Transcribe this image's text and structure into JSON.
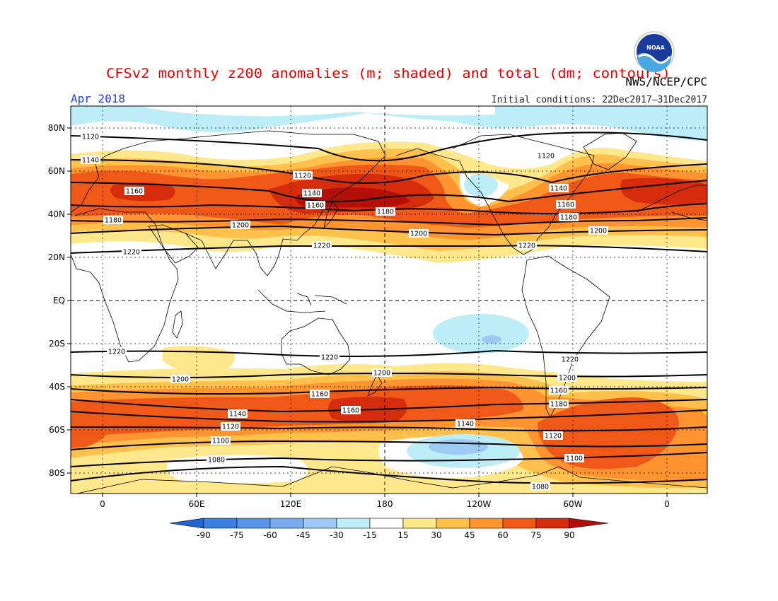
{
  "header": {
    "title": "CFSv2 monthly z200 anomalies (m; shaded) and total (dm; contours)",
    "period": "Apr 2018",
    "agency": "NWS/NCEP/CPC",
    "initial_conditions": "Initial conditions: 22Dec2017–31Dec2017",
    "logo_text": "NOAA"
  },
  "map": {
    "projection": "cylindrical equidistant",
    "lon_ticks": [
      "0",
      "60E",
      "120E",
      "180",
      "120W",
      "60W",
      "0"
    ],
    "lat_ticks": [
      "80N",
      "60N",
      "40N",
      "20N",
      "EQ",
      "20S",
      "40S",
      "60S",
      "80S"
    ],
    "contour_labels": [
      "1120",
      "1140",
      "1160",
      "1180",
      "1200",
      "1220",
      "1120",
      "1140",
      "1160",
      "1180",
      "1200",
      "1220",
      "1120",
      "1140",
      "1160",
      "1180",
      "1200",
      "1220",
      "1220",
      "1220",
      "1200",
      "1220",
      "1200",
      "1200",
      "1160",
      "1160",
      "1180",
      "1140",
      "1160",
      "1120",
      "1140",
      "1100",
      "1120",
      "1080",
      "1100",
      "1080"
    ]
  },
  "colorbar": {
    "levels": [
      "-90",
      "-75",
      "-60",
      "-45",
      "-30",
      "-15",
      "15",
      "30",
      "45",
      "60",
      "75",
      "90"
    ],
    "colors": {
      "lt_m90": "#1e64d2",
      "m90_m75": "#3c80e2",
      "m75_m60": "#5a96e8",
      "m60_m45": "#78aef0",
      "m45_m30": "#9ccaf4",
      "m30_m15": "#bdeef8",
      "m15_15": "#ffffff",
      "p15_30": "#ffe88c",
      "p30_45": "#ffc04c",
      "p45_60": "#ff9430",
      "p60_75": "#f05818",
      "p75_90": "#d42c0c",
      "gt_p90": "#b41008"
    }
  }
}
